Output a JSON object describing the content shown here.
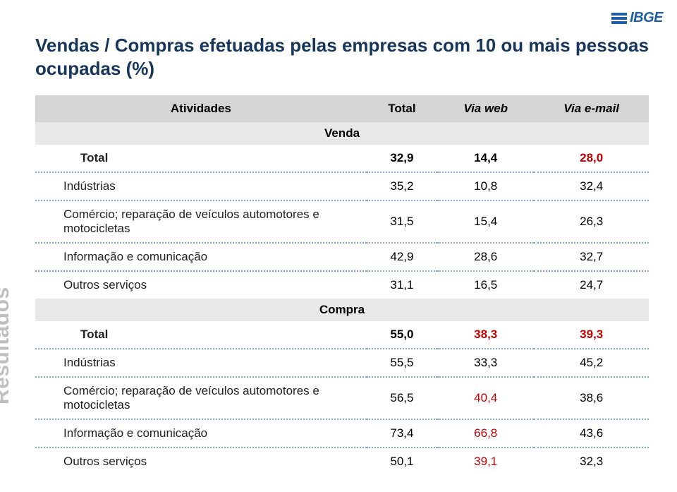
{
  "logo": {
    "text": "IBGE"
  },
  "title": "Vendas / Compras efetuadas pelas empresas com 10 ou mais pessoas ocupadas (%)",
  "side_label": "Resultados",
  "table": {
    "headers": {
      "atividades": "Atividades",
      "total": "Total",
      "via_web": "Via web",
      "via_email": "Via e-mail"
    },
    "sections": [
      {
        "name": "Venda",
        "rows": [
          {
            "label": "Total",
            "total": "32,9",
            "web": "14,4",
            "email": "28,0",
            "is_total": true,
            "highlight_cols": [
              "email"
            ]
          },
          {
            "label": "Indústrias",
            "total": "35,2",
            "web": "10,8",
            "email": "32,4",
            "is_total": false,
            "highlight_cols": []
          },
          {
            "label": "Comércio; reparação de veículos automotores e motocicletas",
            "total": "31,5",
            "web": "15,4",
            "email": "26,3",
            "is_total": false,
            "highlight_cols": []
          },
          {
            "label": "Informação e comunicação",
            "total": "42,9",
            "web": "28,6",
            "email": "32,7",
            "is_total": false,
            "highlight_cols": []
          },
          {
            "label": "Outros serviços",
            "total": "31,1",
            "web": "16,5",
            "email": "24,7",
            "is_total": false,
            "highlight_cols": []
          }
        ]
      },
      {
        "name": "Compra",
        "rows": [
          {
            "label": "Total",
            "total": "55,0",
            "web": "38,3",
            "email": "39,3",
            "is_total": true,
            "highlight_cols": [
              "web",
              "email"
            ]
          },
          {
            "label": "Indústrias",
            "total": "55,5",
            "web": "33,3",
            "email": "45,2",
            "is_total": false,
            "highlight_cols": []
          },
          {
            "label": "Comércio; reparação de veículos automotores e motocicletas",
            "total": "56,5",
            "web": "40,4",
            "email": "38,6",
            "is_total": false,
            "highlight_cols": [
              "web"
            ]
          },
          {
            "label": "Informação e comunicação",
            "total": "73,4",
            "web": "66,8",
            "email": "43,6",
            "is_total": false,
            "highlight_cols": [
              "web"
            ]
          },
          {
            "label": "Outros serviços",
            "total": "50,1",
            "web": "39,1",
            "email": "32,3",
            "is_total": false,
            "highlight_cols": [
              "web"
            ]
          }
        ]
      }
    ]
  },
  "colors": {
    "title": "#17365d",
    "header_bg": "#d5d5d5",
    "section_bg": "#e8e8e8",
    "dotted": "#7fa8d9",
    "highlight": "#c00000",
    "side_label": "#bfbfbf",
    "logo": "#1f5fa6"
  }
}
